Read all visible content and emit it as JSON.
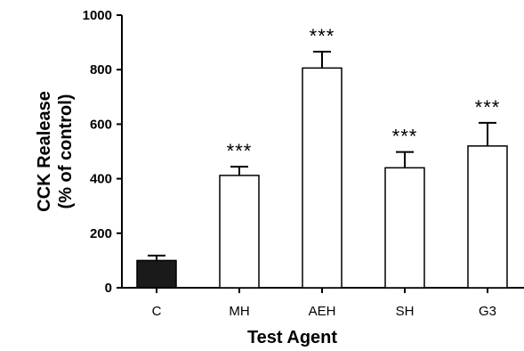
{
  "chart_data": {
    "type": "bar",
    "title": "",
    "xlabel": "Test Agent",
    "ylabel_lines": [
      "CCK Realease",
      "(% of control)"
    ],
    "categories": [
      "C",
      "MH",
      "AEH",
      "SH",
      "G3"
    ],
    "values": [
      100,
      412,
      806,
      440,
      520
    ],
    "errors": [
      18,
      32,
      60,
      58,
      85
    ],
    "significance": [
      "",
      "***",
      "***",
      "***",
      "***"
    ],
    "bar_fills": [
      "#1a1a1a",
      "#ffffff",
      "#ffffff",
      "#ffffff",
      "#ffffff"
    ],
    "ylim": [
      0,
      1000
    ],
    "yticks": [
      0,
      200,
      400,
      600,
      800,
      1000
    ],
    "grid": false,
    "legend": "none"
  }
}
